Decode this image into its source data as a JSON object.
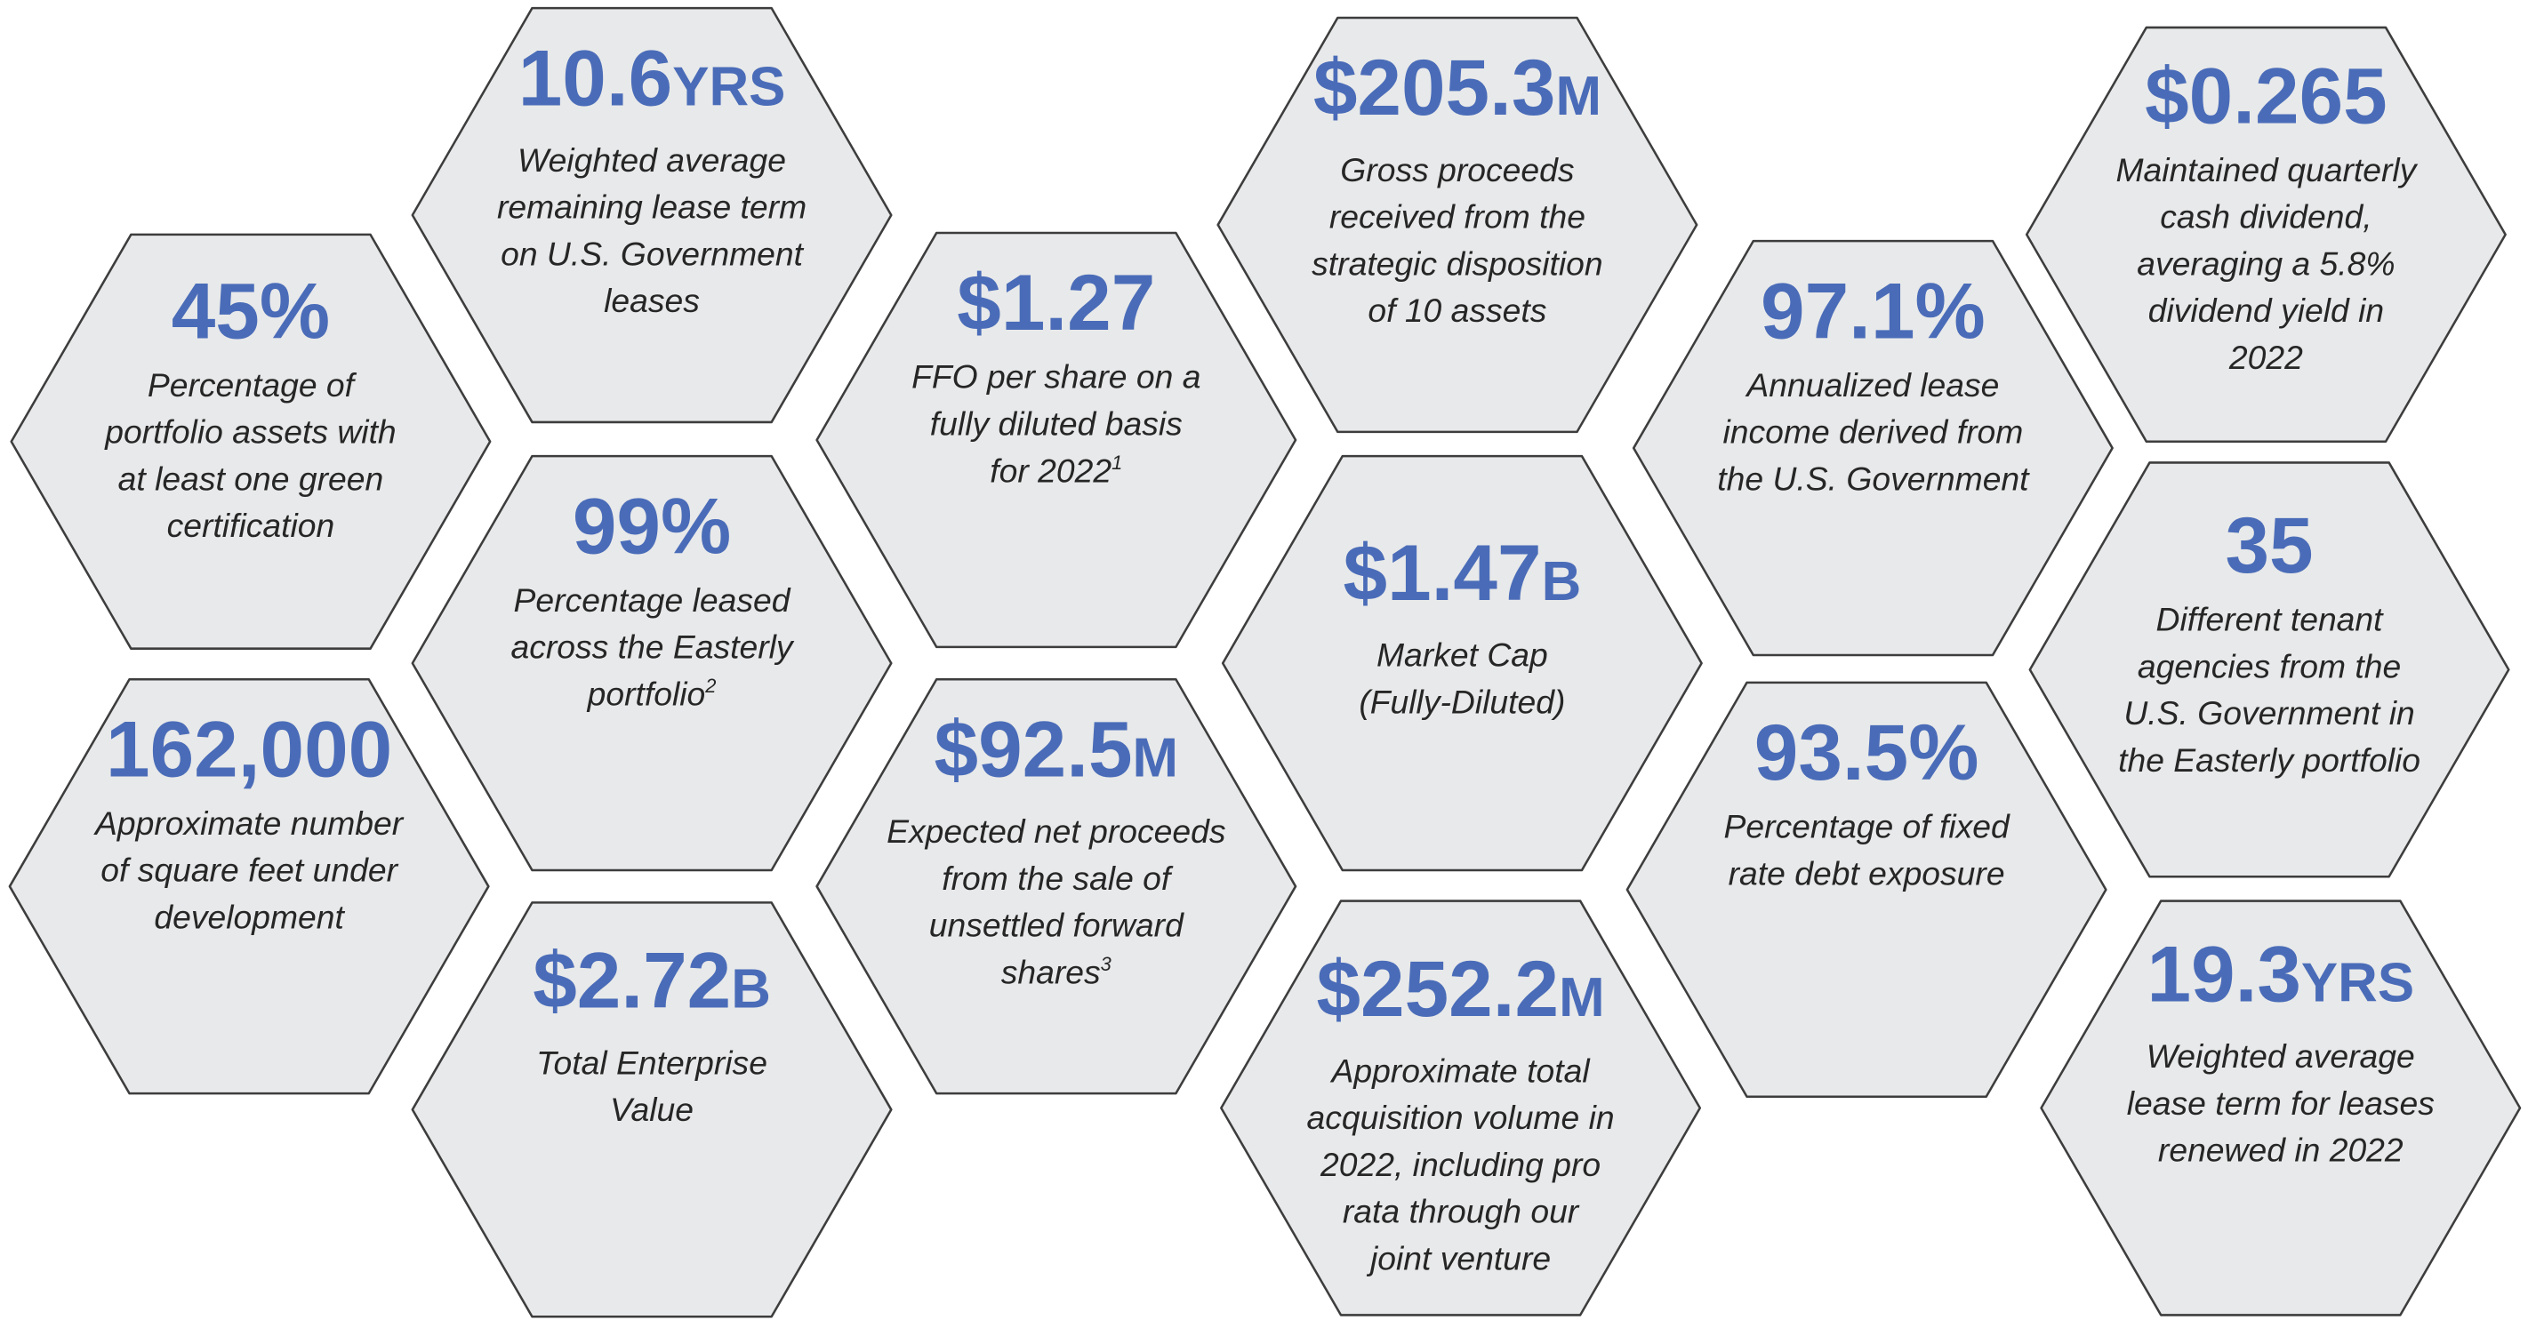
{
  "colors": {
    "hex_fill": "#e8e9ea",
    "hex_stroke": "#3d3d3d",
    "value_text": "#4a6cb8",
    "description_text": "#262626"
  },
  "stats": [
    {
      "value": "10.6",
      "unit": "YRS",
      "lines": [
        "Weighted average",
        "remaining lease term",
        "on U.S. Government",
        "leases"
      ]
    },
    {
      "value": "45%",
      "unit": "",
      "lines": [
        "Percentage of",
        "portfolio assets with",
        "at least one green",
        "certification"
      ]
    },
    {
      "value": "99%",
      "unit": "",
      "lines": [
        "Percentage leased",
        "across the Easterly",
        "portfolio"
      ],
      "footnote": "2"
    },
    {
      "value": "162,000",
      "unit": "",
      "lines": [
        "Approximate number",
        "of square feet under",
        "development"
      ]
    },
    {
      "value": "$2.72",
      "unit": "B",
      "lines": [
        "Total Enterprise",
        "Value"
      ]
    },
    {
      "value": "$1.27",
      "unit": "",
      "lines": [
        "FFO per share on a",
        "fully diluted basis",
        "for 2022"
      ],
      "footnote": "1"
    },
    {
      "value": "$92.5",
      "unit": "M",
      "lines": [
        "Expected net proceeds",
        "from the sale of",
        "unsettled forward",
        "shares"
      ],
      "footnote": "3"
    },
    {
      "value": "$205.3",
      "unit": "M",
      "lines": [
        "Gross proceeds",
        "received from the",
        "strategic disposition",
        "of 10 assets"
      ]
    },
    {
      "value": "$1.47",
      "unit": "B",
      "lines": [
        "Market Cap",
        "(Fully-Diluted)"
      ]
    },
    {
      "value": "$252.2",
      "unit": "M",
      "lines": [
        "Approximate total",
        "acquisition volume in",
        "2022, including pro",
        "rata through our",
        "joint venture"
      ]
    },
    {
      "value": "97.1%",
      "unit": "",
      "lines": [
        "Annualized lease",
        "income derived from",
        "the U.S. Government"
      ]
    },
    {
      "value": "93.5%",
      "unit": "",
      "lines": [
        "Percentage of fixed",
        "rate debt exposure"
      ]
    },
    {
      "value": "$0.265",
      "unit": "",
      "lines": [
        "Maintained quarterly",
        "cash dividend,",
        "averaging a 5.8%",
        "dividend yield in",
        "2022"
      ]
    },
    {
      "value": "35",
      "unit": "",
      "lines": [
        "Different tenant",
        "agencies from the",
        "U.S. Government in",
        "the Easterly portfolio"
      ]
    },
    {
      "value": "19.3",
      "unit": "YRS",
      "lines": [
        "Weighted average",
        "lease term for leases",
        "renewed in 2022"
      ]
    }
  ]
}
